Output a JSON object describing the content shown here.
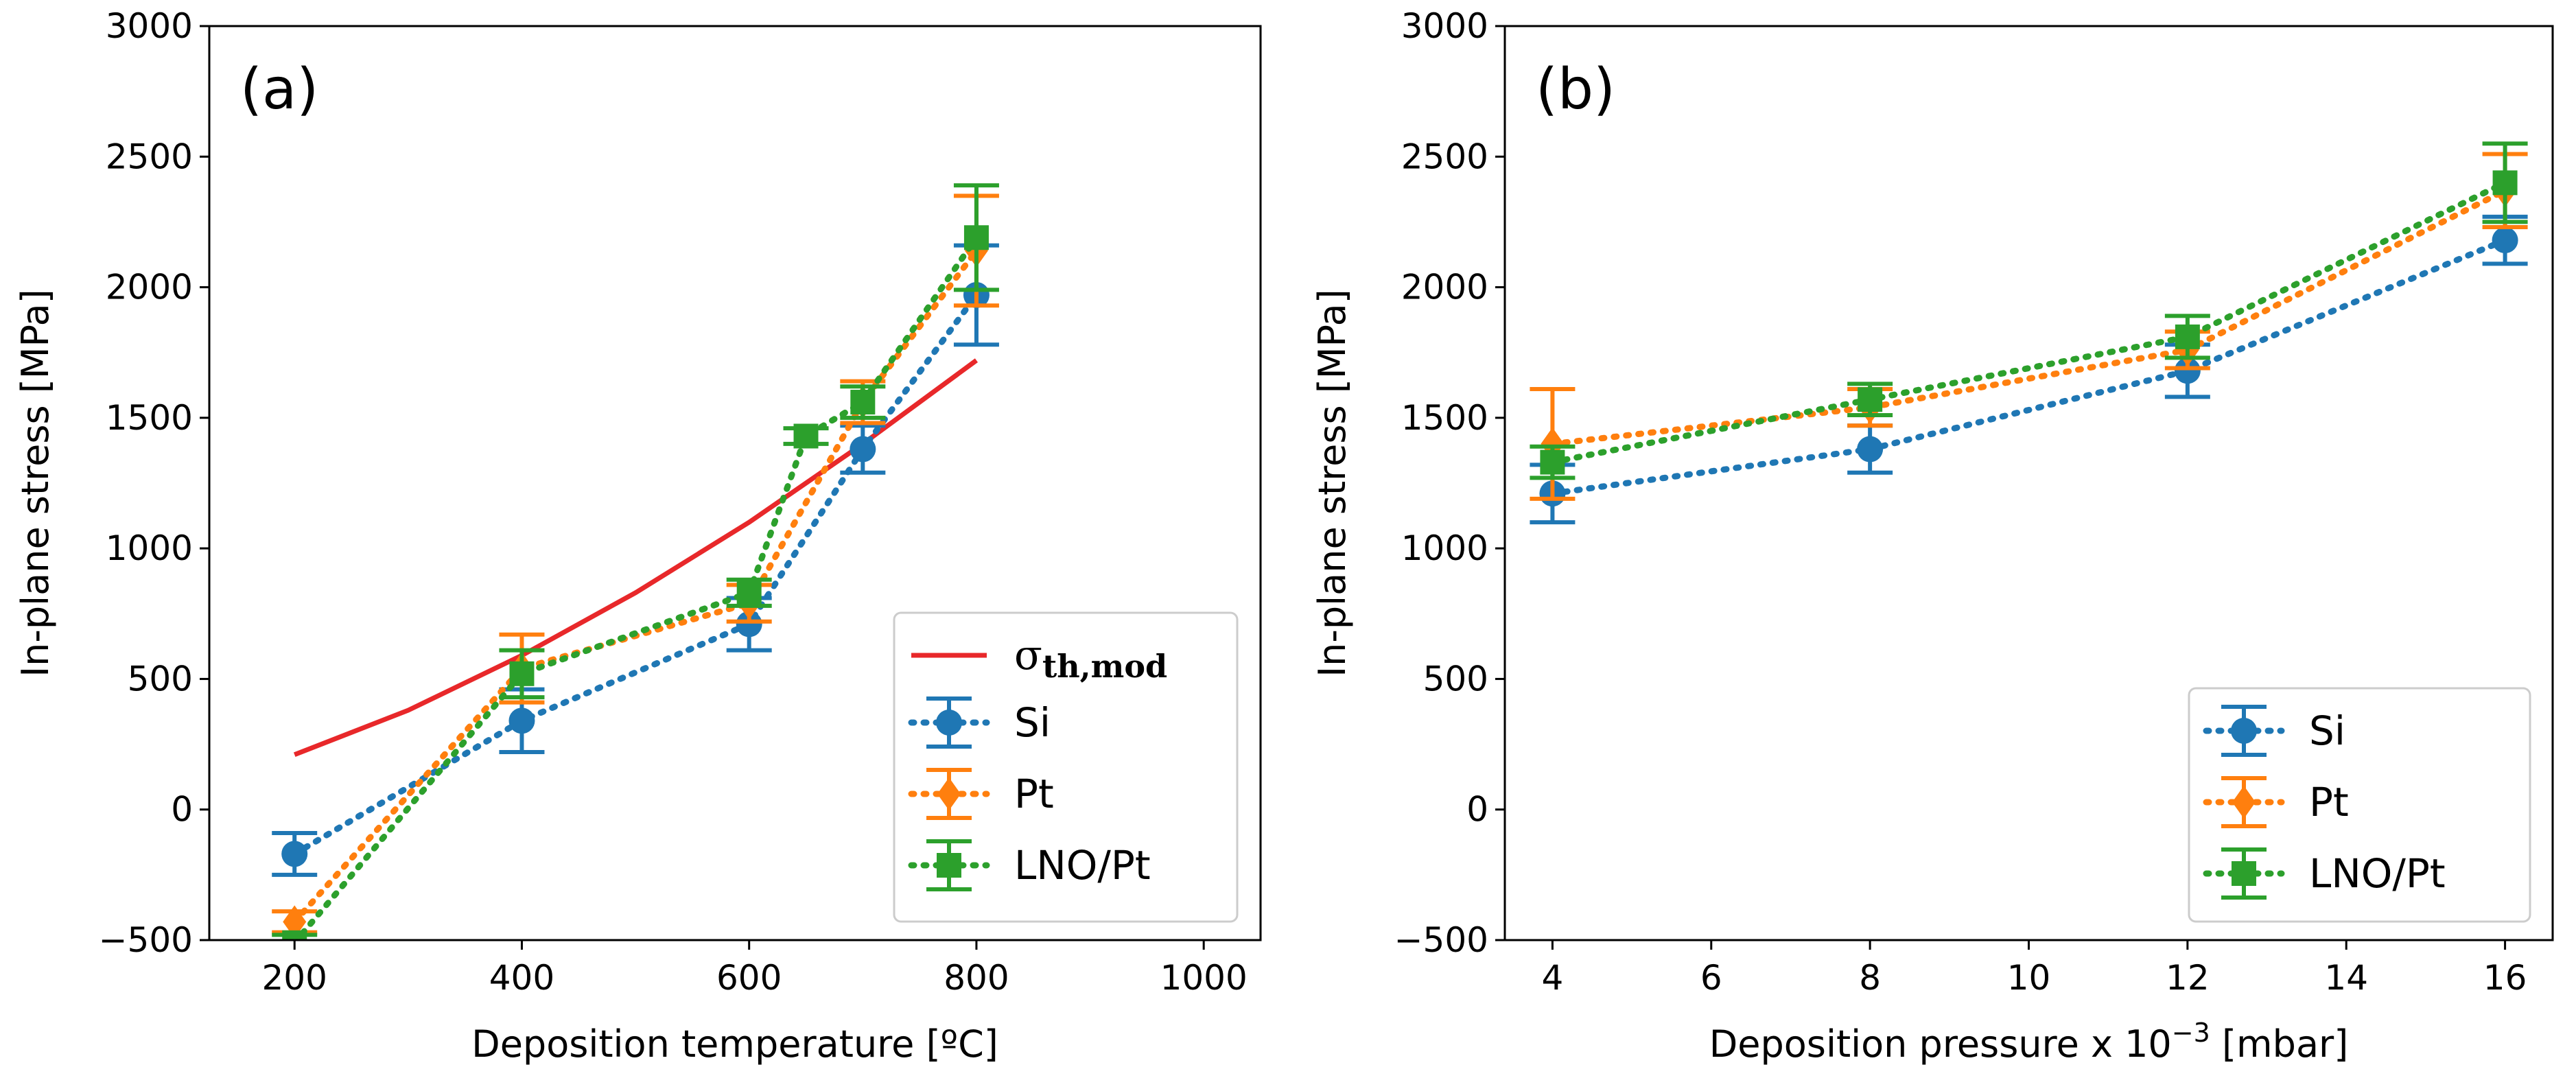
{
  "chart_data": [
    {
      "type": "line",
      "panel_label": "(a)",
      "xlabel": "Deposition temperature [ºC]",
      "ylabel": "In-plane stress [MPa]",
      "xlim": [
        125,
        1050
      ],
      "ylim": [
        -500,
        3000
      ],
      "xticks": [
        200,
        400,
        600,
        800,
        1000
      ],
      "yticks": [
        -500,
        0,
        500,
        1000,
        1500,
        2000,
        2500,
        3000
      ],
      "xtick_labels": [
        "200",
        "400",
        "600",
        "800",
        "1000"
      ],
      "ytick_labels": [
        "−500",
        "0",
        "500",
        "1000",
        "1500",
        "2000",
        "2500",
        "3000"
      ],
      "legend_position": "lower-right",
      "model_line": {
        "name": "σth,mod",
        "name_main": "σ",
        "name_sub": "th,mod",
        "color": "#e8282a",
        "x": [
          200,
          300,
          400,
          500,
          600,
          700,
          800
        ],
        "y": [
          210,
          380,
          590,
          830,
          1100,
          1400,
          1720
        ]
      },
      "series": [
        {
          "name": "Si",
          "color": "#1f77b4",
          "marker": "circle",
          "x": [
            200,
            400,
            600,
            700,
            800
          ],
          "y": [
            -170,
            340,
            710,
            1380,
            1970
          ],
          "err": [
            80,
            120,
            100,
            90,
            190
          ]
        },
        {
          "name": "Pt",
          "color": "#ff7f0e",
          "marker": "diamond",
          "x": [
            200,
            400,
            600,
            700,
            800
          ],
          "y": [
            -430,
            540,
            790,
            1560,
            2140
          ],
          "err": [
            40,
            130,
            70,
            80,
            210
          ]
        },
        {
          "name": "LNO/Pt",
          "color": "#2ca02c",
          "marker": "square",
          "x": [
            200,
            400,
            600,
            650,
            700,
            800
          ],
          "y": [
            -510,
            520,
            830,
            1430,
            1560,
            2190
          ],
          "err": [
            30,
            90,
            50,
            30,
            60,
            200
          ]
        }
      ]
    },
    {
      "type": "line",
      "panel_label": "(b)",
      "xlabel": "Deposition pressure x 10",
      "xlabel_sup": "−3",
      "xlabel_tail": " [mbar]",
      "ylabel": "In-plane stress [MPa]",
      "xlim": [
        3.4,
        16.6
      ],
      "ylim": [
        -500,
        3000
      ],
      "xticks": [
        4,
        6,
        8,
        10,
        12,
        14,
        16
      ],
      "yticks": [
        -500,
        0,
        500,
        1000,
        1500,
        2000,
        2500,
        3000
      ],
      "xtick_labels": [
        "4",
        "6",
        "8",
        "10",
        "12",
        "14",
        "16"
      ],
      "ytick_labels": [
        "−500",
        "0",
        "500",
        "1000",
        "1500",
        "2000",
        "2500",
        "3000"
      ],
      "legend_position": "lower-right",
      "series": [
        {
          "name": "Si",
          "color": "#1f77b4",
          "marker": "circle",
          "x": [
            4,
            8,
            12,
            16
          ],
          "y": [
            1210,
            1380,
            1680,
            2180
          ],
          "err": [
            110,
            90,
            100,
            90
          ]
        },
        {
          "name": "Pt",
          "color": "#ff7f0e",
          "marker": "diamond",
          "x": [
            4,
            8,
            12,
            16
          ],
          "y": [
            1400,
            1540,
            1760,
            2370
          ],
          "err": [
            210,
            70,
            70,
            140
          ]
        },
        {
          "name": "LNO/Pt",
          "color": "#2ca02c",
          "marker": "square",
          "x": [
            4,
            8,
            12,
            16
          ],
          "y": [
            1330,
            1570,
            1810,
            2400
          ],
          "err": [
            60,
            60,
            80,
            150
          ]
        }
      ]
    }
  ]
}
